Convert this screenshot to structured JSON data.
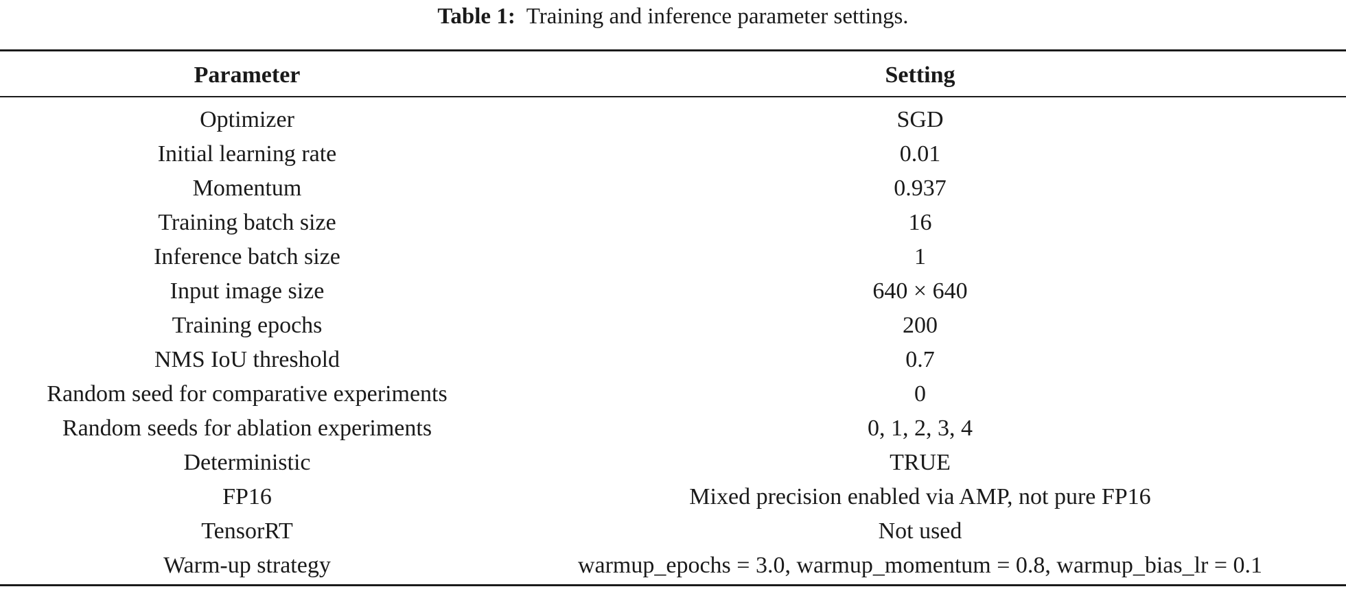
{
  "caption": {
    "label": "Table 1:",
    "text": "Training and inference parameter settings."
  },
  "table": {
    "headers": {
      "parameter": "Parameter",
      "setting": "Setting"
    },
    "rows": [
      {
        "parameter": "Optimizer",
        "setting": "SGD"
      },
      {
        "parameter": "Initial learning rate",
        "setting": "0.01"
      },
      {
        "parameter": "Momentum",
        "setting": "0.937"
      },
      {
        "parameter": "Training batch size",
        "setting": "16"
      },
      {
        "parameter": "Inference batch size",
        "setting": "1"
      },
      {
        "parameter": "Input image size",
        "setting": "640 × 640"
      },
      {
        "parameter": "Training epochs",
        "setting": "200"
      },
      {
        "parameter": "NMS IoU threshold",
        "setting": "0.7"
      },
      {
        "parameter": "Random seed for comparative experiments",
        "setting": "0"
      },
      {
        "parameter": "Random seeds for ablation experiments",
        "setting": "0, 1, 2, 3, 4"
      },
      {
        "parameter": "Deterministic",
        "setting": "TRUE"
      },
      {
        "parameter": "FP16",
        "setting": "Mixed precision enabled via AMP, not pure FP16"
      },
      {
        "parameter": "TensorRT",
        "setting": "Not used"
      },
      {
        "parameter": "Warm-up strategy",
        "setting": "warmup_epochs = 3.0, warmup_momentum = 0.8, warmup_bias_lr = 0.1"
      }
    ]
  }
}
